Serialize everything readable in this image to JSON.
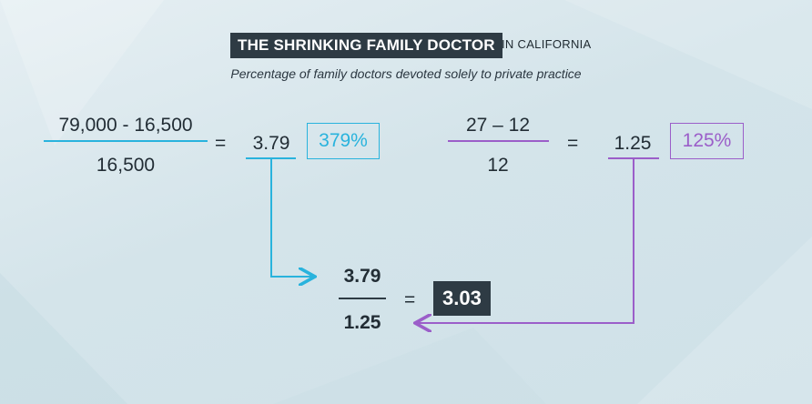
{
  "header": {
    "title": "THE SHRINKING FAMILY DOCTOR",
    "title_suffix": "IN CALIFORNIA",
    "subtitle": "Percentage of family doctors devoted solely to private practice"
  },
  "left_equation": {
    "numerator": "79,000 - 16,500",
    "denominator": "16,500",
    "equals": "=",
    "ratio": "3.79",
    "percent": "379%"
  },
  "right_equation": {
    "numerator": "27 – 12",
    "denominator": "12",
    "equals": "=",
    "ratio": "1.25",
    "percent": "125%"
  },
  "result_equation": {
    "numerator": "3.79",
    "denominator": "1.25",
    "equals": "=",
    "result": "3.03"
  },
  "colors": {
    "blue_accent": "#29b3dd",
    "purple_accent": "#9b5ec9",
    "dark_box": "#2e3b44"
  }
}
